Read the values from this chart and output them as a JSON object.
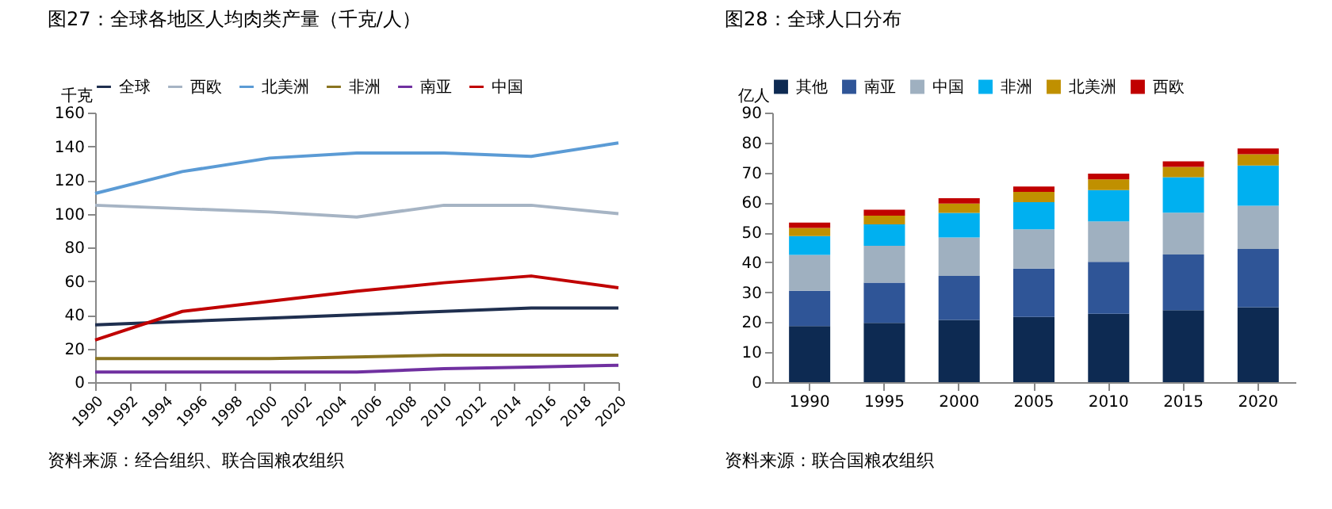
{
  "chart_data": [
    {
      "type": "line",
      "title": "图27：全球各地区人均肉类产量（千克/人）",
      "ylabel": "千克",
      "x": [
        1990,
        1995,
        2000,
        2005,
        2010,
        2015,
        2020
      ],
      "xlim": [
        1990,
        2020
      ],
      "xticks": [
        1990,
        1992,
        1994,
        1996,
        1998,
        2000,
        2002,
        2004,
        2006,
        2008,
        2010,
        2012,
        2014,
        2016,
        2018,
        2020
      ],
      "ylim": [
        0,
        160
      ],
      "yticks": [
        0,
        20,
        40,
        60,
        80,
        100,
        120,
        140,
        160
      ],
      "grid": false,
      "legend": "top",
      "marker": "none",
      "line_style": "solid",
      "series": [
        {
          "name": "全球",
          "color": "#1f2f4f",
          "values": [
            34,
            36,
            38,
            40,
            42,
            44,
            44
          ]
        },
        {
          "name": "西欧",
          "color": "#a6b4c4",
          "values": [
            105,
            103,
            101,
            98,
            105,
            105,
            100
          ]
        },
        {
          "name": "北美洲",
          "color": "#5b9bd5",
          "values": [
            112,
            125,
            133,
            136,
            136,
            134,
            142
          ]
        },
        {
          "name": "非洲",
          "color": "#8a7420",
          "values": [
            14,
            14,
            14,
            15,
            16,
            16,
            16
          ]
        },
        {
          "name": "南亚",
          "color": "#7030a0",
          "values": [
            6,
            6,
            6,
            6,
            8,
            9,
            10
          ]
        },
        {
          "name": "中国",
          "color": "#c00000",
          "values": [
            25,
            42,
            48,
            54,
            59,
            63,
            56
          ]
        }
      ],
      "annotations": [
        "资料来源：经合组织、联合国粮农组织"
      ]
    },
    {
      "type": "bar",
      "stacked": true,
      "title": "图28：全球人口分布",
      "ylabel": "亿人",
      "categories": [
        "1990",
        "1995",
        "2000",
        "2005",
        "2010",
        "2015",
        "2020"
      ],
      "ylim": [
        0,
        90
      ],
      "yticks": [
        0,
        10,
        20,
        30,
        40,
        50,
        60,
        70,
        80,
        90
      ],
      "grid": false,
      "legend": "top",
      "series": [
        {
          "name": "其他",
          "color": "#0d2a52",
          "values": [
            18.7,
            19.8,
            20.8,
            21.8,
            22.8,
            24.0,
            25.0
          ]
        },
        {
          "name": "南亚",
          "color": "#2f5597",
          "values": [
            11.8,
            13.4,
            14.7,
            16.1,
            17.4,
            18.6,
            19.5
          ]
        },
        {
          "name": "中国",
          "color": "#9fb0c0",
          "values": [
            12.0,
            12.3,
            12.8,
            13.1,
            13.5,
            14.0,
            14.4
          ]
        },
        {
          "name": "非洲",
          "color": "#00b0f0",
          "values": [
            6.3,
            7.2,
            8.2,
            9.1,
            10.4,
            11.8,
            13.4
          ]
        },
        {
          "name": "北美洲",
          "color": "#c09000",
          "values": [
            2.7,
            2.9,
            3.1,
            3.4,
            3.6,
            3.5,
            3.8
          ]
        },
        {
          "name": "西欧",
          "color": "#c00000",
          "values": [
            1.8,
            2.0,
            1.8,
            1.8,
            1.9,
            1.8,
            1.9
          ]
        }
      ],
      "annotations": [
        "资料来源：联合国粮农组织"
      ]
    }
  ]
}
